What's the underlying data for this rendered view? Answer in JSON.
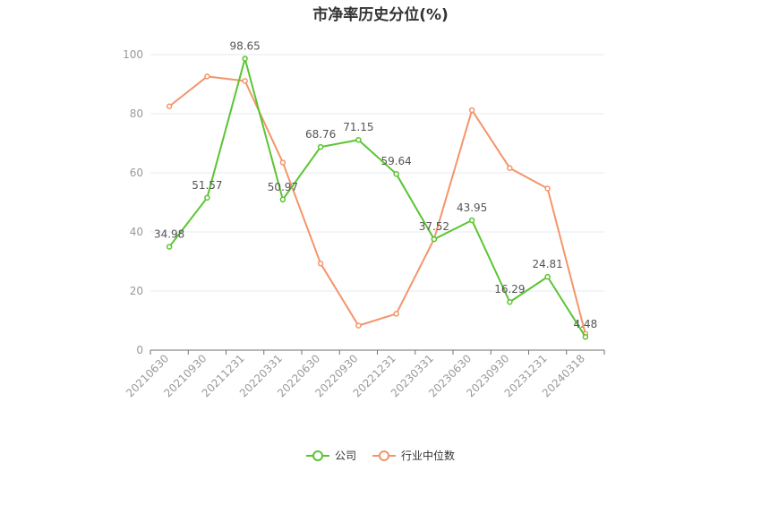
{
  "chart_data": {
    "type": "line",
    "title": "市净率历史分位(%)",
    "categories": [
      "20210630",
      "20210930",
      "20211231",
      "20220331",
      "20220630",
      "20220930",
      "20221231",
      "20230331",
      "20230630",
      "20230930",
      "20231231",
      "20240318"
    ],
    "ylim": [
      0,
      100
    ],
    "yticks": [
      0,
      20,
      40,
      60,
      80,
      100
    ],
    "grid": true,
    "legend_position": "bottom",
    "series": [
      {
        "name": "公司",
        "color": "#5ac531",
        "values": [
          34.98,
          51.57,
          98.65,
          50.97,
          68.76,
          71.15,
          59.64,
          37.52,
          43.95,
          16.29,
          24.81,
          4.48
        ],
        "labels": [
          "34.98",
          "51.57",
          "98.65",
          "50.97",
          "68.76",
          "71.15",
          "59.64",
          "37.52",
          "43.95",
          "16.29",
          "24.81",
          "4.48"
        ]
      },
      {
        "name": "行业中位数",
        "color": "#f3956a",
        "values": [
          82.5,
          92.6,
          91.1,
          63.5,
          29.3,
          8.3,
          12.3,
          37.6,
          81.2,
          61.6,
          54.7,
          5.5
        ]
      }
    ]
  }
}
